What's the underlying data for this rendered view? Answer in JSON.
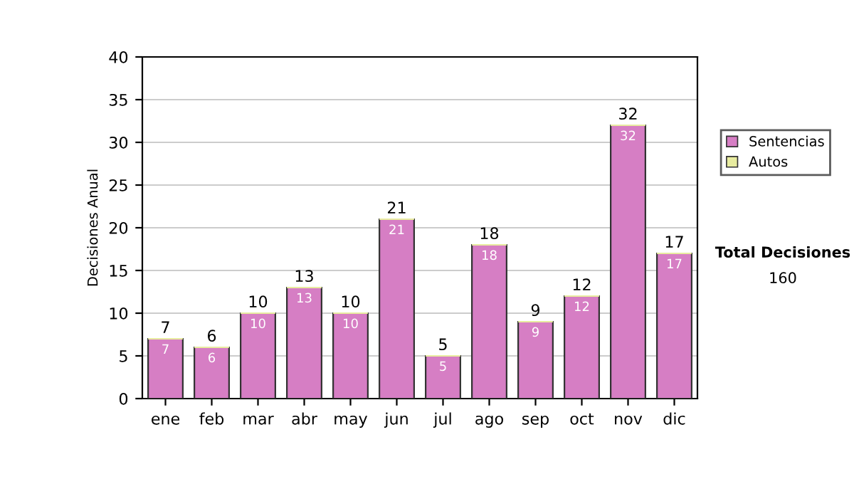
{
  "chart_data": {
    "type": "bar",
    "ylabel": "Decisiones Anual",
    "categories": [
      "ene",
      "feb",
      "mar",
      "abr",
      "may",
      "jun",
      "jul",
      "ago",
      "sep",
      "oct",
      "nov",
      "dic"
    ],
    "stacked": true,
    "series": [
      {
        "name": "Sentencias",
        "color": "#d67ec4",
        "values": [
          7,
          6,
          10,
          13,
          10,
          21,
          5,
          18,
          9,
          12,
          32,
          17
        ],
        "value_labels": [
          "7",
          "6",
          "10",
          "13",
          "10",
          "21",
          "5",
          "18",
          "9",
          "12",
          "32",
          "17"
        ]
      },
      {
        "name": "Autos",
        "color": "#e8eca0",
        "values": [
          0,
          0,
          0,
          0,
          0,
          0,
          0,
          0,
          0,
          0,
          0,
          0
        ]
      }
    ],
    "totals": [
      "7",
      "6",
      "10",
      "13",
      "10",
      "21",
      "5",
      "18",
      "9",
      "12",
      "32",
      "17"
    ],
    "ylim": [
      0,
      40
    ],
    "yticks": [
      0,
      5,
      10,
      15,
      20,
      25,
      30,
      35,
      40
    ],
    "grid": "y",
    "legend": "right",
    "annotations": [
      "Total Decisiones",
      "160"
    ]
  }
}
